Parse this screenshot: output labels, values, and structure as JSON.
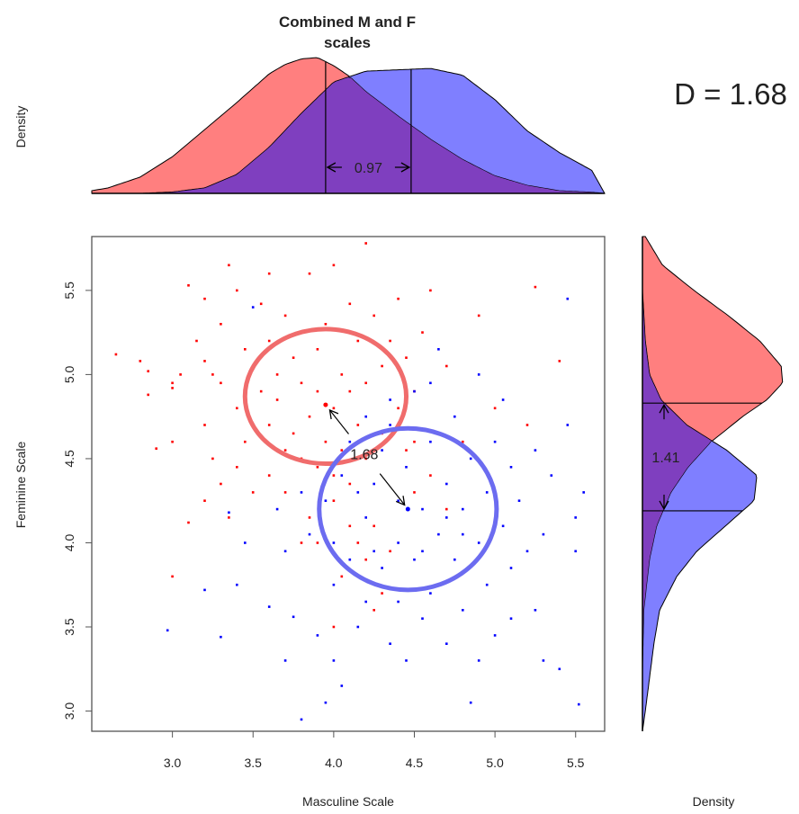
{
  "title_lines": [
    "Combined  M and F",
    "scales"
  ],
  "d_statistic": "D = 1.68",
  "colors": {
    "female": "#ff0000",
    "male": "#0000ff",
    "female_fill": "#ff7f7f",
    "male_fill": "#7f7fff",
    "overlap_fill": "#7f3fbf",
    "ellipse_female": "#f06c6c",
    "ellipse_male": "#6c6cf0"
  },
  "chart_data": [
    {
      "id": "top-density",
      "type": "area",
      "ylabel": "Density",
      "xlim": [
        2.5,
        5.68
      ],
      "series": [
        {
          "color": "female",
          "x": [
            2.5,
            2.6,
            2.8,
            3.0,
            3.2,
            3.4,
            3.6,
            3.7,
            3.8,
            3.9,
            4.0,
            4.1,
            4.2,
            4.4,
            4.6,
            4.8,
            5.0,
            5.2,
            5.4,
            5.6,
            5.68
          ],
          "y": [
            0.02,
            0.04,
            0.12,
            0.27,
            0.47,
            0.67,
            0.88,
            0.95,
            0.99,
            1.0,
            0.94,
            0.86,
            0.75,
            0.57,
            0.4,
            0.25,
            0.13,
            0.06,
            0.02,
            0.01,
            0.0
          ]
        },
        {
          "color": "male",
          "x": [
            2.5,
            2.8,
            3.0,
            3.2,
            3.4,
            3.6,
            3.8,
            4.0,
            4.2,
            4.4,
            4.6,
            4.8,
            5.0,
            5.2,
            5.4,
            5.6,
            5.68
          ],
          "y": [
            0.0,
            0.0,
            0.01,
            0.04,
            0.14,
            0.34,
            0.59,
            0.82,
            0.9,
            0.91,
            0.92,
            0.87,
            0.69,
            0.46,
            0.3,
            0.17,
            0.0
          ]
        }
      ],
      "mean_lines_x": [
        3.95,
        4.48
      ],
      "annotation": "0.97"
    },
    {
      "id": "scatter",
      "type": "scatter",
      "xlabel": "Masculine Scale",
      "ylabel": "Feminine Scale",
      "xlim": [
        2.5,
        5.68
      ],
      "ylim": [
        2.88,
        5.82
      ],
      "xticks": [
        "3.0",
        "3.5",
        "4.0",
        "4.5",
        "5.0",
        "5.5"
      ],
      "yticks": [
        "3.0",
        "3.5",
        "4.0",
        "4.5",
        "5.0",
        "5.5"
      ],
      "grid": false,
      "means": {
        "female": [
          3.95,
          4.82
        ],
        "male": [
          4.46,
          4.2
        ]
      },
      "ellipses": [
        {
          "color": "ellipse_female",
          "center": [
            3.95,
            4.87
          ],
          "rx": 0.5,
          "ry": 0.4
        },
        {
          "color": "ellipse_male",
          "center": [
            4.46,
            4.2
          ],
          "rx": 0.55,
          "ry": 0.48
        }
      ],
      "annotation": "1.68",
      "points_female": [
        [
          2.65,
          5.12
        ],
        [
          2.8,
          5.08
        ],
        [
          2.85,
          4.88
        ],
        [
          2.85,
          5.02
        ],
        [
          2.9,
          4.56
        ],
        [
          3.0,
          4.6
        ],
        [
          3.0,
          4.92
        ],
        [
          3.0,
          4.95
        ],
        [
          3.0,
          3.8
        ],
        [
          3.05,
          5.0
        ],
        [
          3.1,
          5.53
        ],
        [
          3.1,
          4.12
        ],
        [
          3.15,
          5.2
        ],
        [
          3.2,
          5.45
        ],
        [
          3.2,
          5.08
        ],
        [
          3.2,
          4.7
        ],
        [
          3.25,
          4.5
        ],
        [
          3.25,
          5.0
        ],
        [
          3.3,
          4.95
        ],
        [
          3.3,
          5.3
        ],
        [
          3.3,
          4.35
        ],
        [
          3.35,
          5.65
        ],
        [
          3.35,
          4.15
        ],
        [
          3.4,
          4.8
        ],
        [
          3.4,
          5.5
        ],
        [
          3.45,
          4.6
        ],
        [
          3.45,
          5.15
        ],
        [
          3.5,
          4.3
        ],
        [
          3.5,
          5.05
        ],
        [
          3.55,
          5.42
        ],
        [
          3.55,
          4.9
        ],
        [
          3.6,
          4.7
        ],
        [
          3.6,
          5.2
        ],
        [
          3.6,
          4.4
        ],
        [
          3.65,
          4.85
        ],
        [
          3.65,
          5.0
        ],
        [
          3.7,
          5.35
        ],
        [
          3.7,
          4.3
        ],
        [
          3.75,
          5.1
        ],
        [
          3.75,
          4.65
        ],
        [
          3.8,
          4.95
        ],
        [
          3.8,
          5.25
        ],
        [
          3.8,
          4.5
        ],
        [
          3.85,
          4.75
        ],
        [
          3.85,
          5.6
        ],
        [
          3.9,
          4.9
        ],
        [
          3.9,
          4.45
        ],
        [
          3.9,
          5.15
        ],
        [
          3.95,
          4.6
        ],
        [
          3.95,
          5.3
        ],
        [
          4.0,
          4.8
        ],
        [
          4.0,
          5.65
        ],
        [
          4.0,
          4.25
        ],
        [
          4.05,
          5.0
        ],
        [
          4.05,
          4.55
        ],
        [
          4.1,
          4.9
        ],
        [
          4.1,
          5.42
        ],
        [
          4.1,
          4.35
        ],
        [
          4.15,
          4.7
        ],
        [
          4.15,
          5.2
        ],
        [
          4.2,
          5.78
        ],
        [
          4.2,
          4.95
        ],
        [
          4.2,
          4.5
        ],
        [
          4.25,
          5.35
        ],
        [
          4.25,
          4.1
        ],
        [
          4.3,
          5.05
        ],
        [
          4.3,
          4.65
        ],
        [
          4.35,
          5.2
        ],
        [
          4.35,
          3.95
        ],
        [
          4.4,
          5.45
        ],
        [
          4.4,
          4.8
        ],
        [
          4.45,
          4.55
        ],
        [
          4.45,
          5.1
        ],
        [
          4.5,
          4.9
        ],
        [
          4.5,
          4.3
        ],
        [
          4.55,
          5.25
        ],
        [
          4.6,
          4.4
        ],
        [
          4.6,
          5.5
        ],
        [
          4.7,
          4.2
        ],
        [
          4.7,
          5.05
        ],
        [
          4.8,
          4.6
        ],
        [
          4.9,
          5.35
        ],
        [
          5.0,
          4.8
        ],
        [
          5.0,
          4.3
        ],
        [
          5.2,
          4.7
        ],
        [
          5.25,
          5.52
        ],
        [
          5.4,
          5.08
        ],
        [
          4.0,
          3.5
        ],
        [
          4.2,
          3.9
        ],
        [
          3.8,
          4.0
        ],
        [
          4.05,
          3.8
        ],
        [
          4.3,
          3.7
        ],
        [
          3.85,
          4.15
        ],
        [
          3.5,
          4.7
        ],
        [
          3.7,
          4.55
        ],
        [
          3.9,
          4.0
        ],
        [
          4.1,
          4.1
        ],
        [
          4.0,
          4.4
        ],
        [
          3.6,
          5.6
        ],
        [
          3.2,
          4.25
        ],
        [
          3.4,
          4.45
        ],
        [
          4.5,
          4.6
        ],
        [
          4.15,
          4.0
        ],
        [
          4.25,
          3.6
        ]
      ],
      "points_male": [
        [
          2.97,
          3.48
        ],
        [
          3.2,
          3.72
        ],
        [
          3.3,
          3.44
        ],
        [
          3.35,
          4.18
        ],
        [
          3.4,
          3.75
        ],
        [
          3.45,
          4.0
        ],
        [
          3.5,
          5.4
        ],
        [
          3.6,
          3.62
        ],
        [
          3.7,
          3.95
        ],
        [
          3.7,
          3.3
        ],
        [
          3.75,
          3.56
        ],
        [
          3.8,
          4.3
        ],
        [
          3.8,
          2.95
        ],
        [
          3.85,
          4.05
        ],
        [
          3.9,
          3.45
        ],
        [
          3.95,
          4.25
        ],
        [
          4.0,
          3.75
        ],
        [
          4.0,
          3.3
        ],
        [
          4.05,
          4.4
        ],
        [
          4.05,
          3.15
        ],
        [
          4.1,
          3.9
        ],
        [
          4.1,
          4.6
        ],
        [
          4.15,
          3.5
        ],
        [
          4.2,
          4.15
        ],
        [
          4.2,
          3.65
        ],
        [
          4.25,
          4.35
        ],
        [
          4.3,
          3.85
        ],
        [
          4.3,
          4.55
        ],
        [
          4.35,
          3.4
        ],
        [
          4.35,
          4.7
        ],
        [
          4.4,
          4.0
        ],
        [
          4.4,
          3.65
        ],
        [
          4.45,
          4.45
        ],
        [
          4.45,
          3.3
        ],
        [
          4.5,
          4.9
        ],
        [
          4.5,
          3.9
        ],
        [
          4.55,
          4.2
        ],
        [
          4.55,
          3.55
        ],
        [
          4.6,
          4.6
        ],
        [
          4.6,
          3.7
        ],
        [
          4.65,
          4.05
        ],
        [
          4.65,
          5.15
        ],
        [
          4.7,
          4.35
        ],
        [
          4.7,
          3.4
        ],
        [
          4.75,
          3.9
        ],
        [
          4.75,
          4.75
        ],
        [
          4.8,
          4.2
        ],
        [
          4.8,
          3.6
        ],
        [
          4.85,
          4.5
        ],
        [
          4.85,
          3.05
        ],
        [
          4.9,
          4.0
        ],
        [
          4.9,
          5.0
        ],
        [
          4.95,
          3.75
        ],
        [
          4.95,
          4.3
        ],
        [
          5.0,
          4.6
        ],
        [
          5.0,
          3.45
        ],
        [
          5.05,
          4.1
        ],
        [
          5.1,
          3.85
        ],
        [
          5.1,
          4.45
        ],
        [
          5.15,
          4.25
        ],
        [
          5.2,
          3.95
        ],
        [
          5.25,
          4.55
        ],
        [
          5.25,
          3.6
        ],
        [
          5.3,
          3.3
        ],
        [
          5.35,
          4.4
        ],
        [
          5.4,
          3.25
        ],
        [
          5.45,
          4.7
        ],
        [
          5.5,
          3.95
        ],
        [
          5.5,
          4.15
        ],
        [
          5.55,
          4.3
        ],
        [
          5.52,
          3.04
        ],
        [
          5.45,
          5.45
        ],
        [
          5.3,
          4.05
        ],
        [
          5.1,
          3.55
        ],
        [
          5.05,
          4.85
        ],
        [
          4.9,
          3.3
        ],
        [
          4.6,
          4.95
        ],
        [
          4.35,
          4.85
        ],
        [
          4.2,
          4.75
        ],
        [
          3.95,
          3.05
        ],
        [
          4.15,
          4.3
        ],
        [
          4.4,
          4.25
        ],
        [
          4.55,
          3.95
        ],
        [
          4.7,
          4.15
        ],
        [
          4.25,
          3.95
        ],
        [
          4.0,
          4.0
        ],
        [
          3.65,
          4.2
        ],
        [
          4.8,
          4.05
        ]
      ]
    },
    {
      "id": "right-density",
      "type": "area",
      "xlabel": "Density",
      "ylim": [
        2.88,
        5.82
      ],
      "series": [
        {
          "color": "female",
          "y": [
            2.88,
            3.2,
            3.6,
            3.9,
            4.1,
            4.3,
            4.45,
            4.6,
            4.75,
            4.85,
            4.95,
            5.05,
            5.2,
            5.35,
            5.5,
            5.65,
            5.82
          ],
          "d": [
            0.0,
            0.0,
            0.01,
            0.05,
            0.1,
            0.2,
            0.32,
            0.48,
            0.7,
            0.87,
            0.98,
            0.97,
            0.82,
            0.6,
            0.36,
            0.14,
            0.02
          ]
        },
        {
          "color": "male",
          "y": [
            2.88,
            3.0,
            3.2,
            3.4,
            3.6,
            3.8,
            3.95,
            4.1,
            4.25,
            4.4,
            4.55,
            4.7,
            4.85,
            5.0,
            5.2,
            5.5,
            5.82
          ],
          "d": [
            0.0,
            0.02,
            0.05,
            0.08,
            0.12,
            0.24,
            0.38,
            0.58,
            0.78,
            0.8,
            0.59,
            0.31,
            0.13,
            0.05,
            0.02,
            0.0,
            0.0
          ]
        }
      ],
      "mean_lines_y": [
        4.83,
        4.19
      ],
      "annotation": "1.41"
    }
  ]
}
